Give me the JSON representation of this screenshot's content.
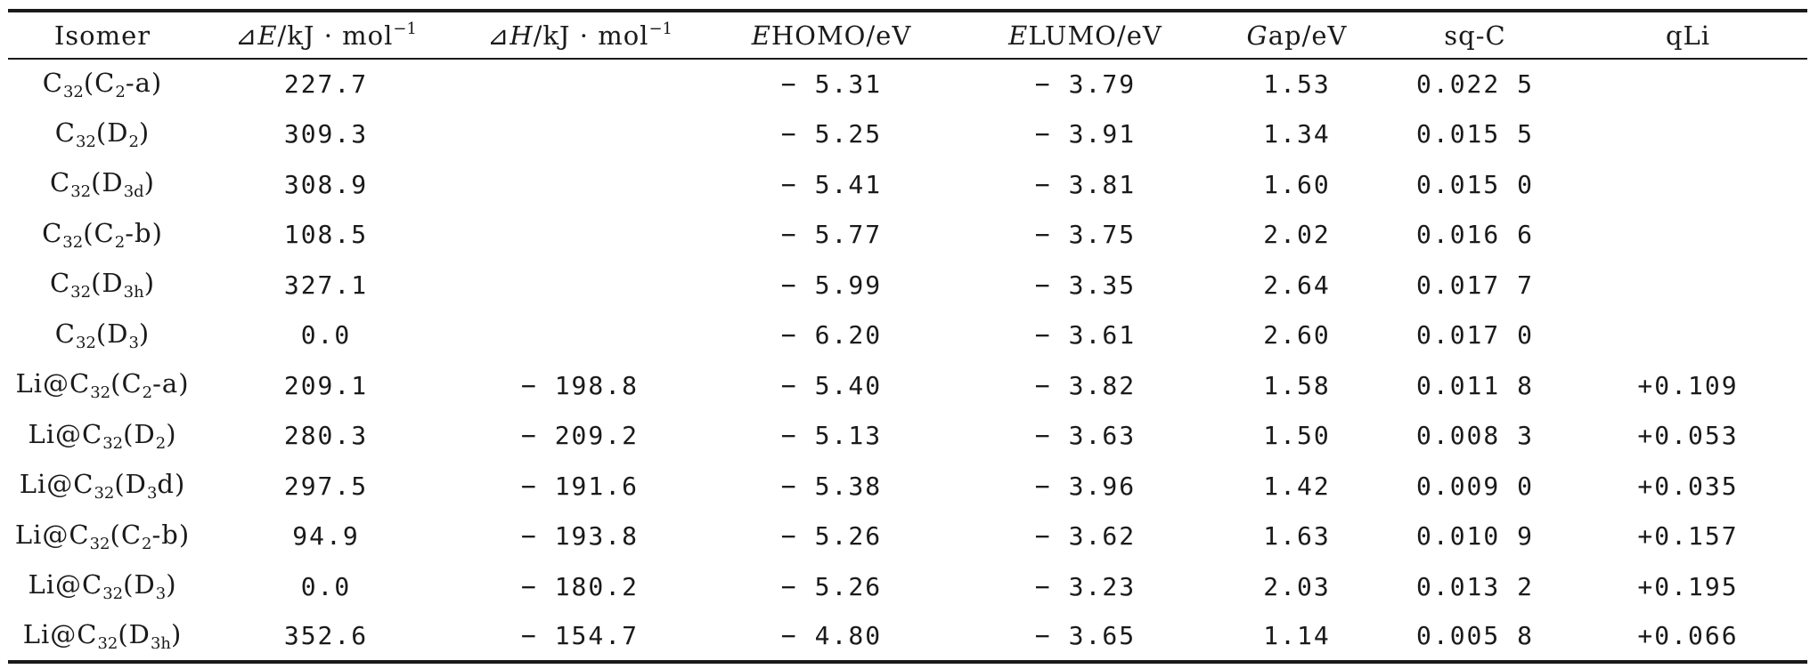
{
  "headers": {
    "isomer": "Isomer",
    "dE_sym": "⊿",
    "dE_var": "E",
    "dE_unit": "/kJ · mol",
    "dE_exp": "−1",
    "dH_sym": "⊿",
    "dH_var": "H",
    "dH_unit": "/kJ · mol",
    "dH_exp": "−1",
    "homo_var": "E",
    "homo_unit": "HOMO/eV",
    "lumo_var": "E",
    "lumo_unit": "LUMO/eV",
    "gap_var": "G",
    "gap_unit": "ap/eV",
    "sqc": "sq-C",
    "qli": "qLi"
  },
  "rows": [
    {
      "prefix": "",
      "base": "C",
      "base_sub": "32",
      "sym_open": "(",
      "sym": "C",
      "sym_sub": "2",
      "sym_tail": "-a",
      "sym_close": ")",
      "dE": "227.7",
      "dH": "",
      "homo": "− 5.31",
      "lumo": "− 3.79",
      "gap": "1.53",
      "sqc": "0.022 5",
      "qli": ""
    },
    {
      "prefix": "",
      "base": "C",
      "base_sub": "32",
      "sym_open": "(",
      "sym": "D",
      "sym_sub": "2",
      "sym_tail": "",
      "sym_close": ")",
      "dE": "309.3",
      "dH": "",
      "homo": "− 5.25",
      "lumo": "− 3.91",
      "gap": "1.34",
      "sqc": "0.015 5",
      "qli": ""
    },
    {
      "prefix": "",
      "base": "C",
      "base_sub": "32",
      "sym_open": "(",
      "sym": "D",
      "sym_sub": "3d",
      "sym_tail": "",
      "sym_close": ")",
      "dE": "308.9",
      "dH": "",
      "homo": "− 5.41",
      "lumo": "− 3.81",
      "gap": "1.60",
      "sqc": "0.015 0",
      "qli": ""
    },
    {
      "prefix": "",
      "base": "C",
      "base_sub": "32",
      "sym_open": "(",
      "sym": "C",
      "sym_sub": "2",
      "sym_tail": "-b",
      "sym_close": ")",
      "dE": "108.5",
      "dH": "",
      "homo": "− 5.77",
      "lumo": "− 3.75",
      "gap": "2.02",
      "sqc": "0.016 6",
      "qli": ""
    },
    {
      "prefix": "",
      "base": "C",
      "base_sub": "32",
      "sym_open": "(",
      "sym": "D",
      "sym_sub": "3h",
      "sym_tail": "",
      "sym_close": ")",
      "dE": "327.1",
      "dH": "",
      "homo": "− 5.99",
      "lumo": "− 3.35",
      "gap": "2.64",
      "sqc": "0.017 7",
      "qli": ""
    },
    {
      "prefix": "",
      "base": "C",
      "base_sub": "32",
      "sym_open": "(",
      "sym": "D",
      "sym_sub": "3",
      "sym_tail": "",
      "sym_close": ")",
      "dE": "0.0",
      "dH": "",
      "homo": "− 6.20",
      "lumo": "− 3.61",
      "gap": "2.60",
      "sqc": "0.017 0",
      "qli": ""
    },
    {
      "prefix": "Li@",
      "base": "C",
      "base_sub": "32",
      "sym_open": "(",
      "sym": "C",
      "sym_sub": "2",
      "sym_tail": "-a",
      "sym_close": ")",
      "dE": "209.1",
      "dH": "− 198.8",
      "homo": "− 5.40",
      "lumo": "− 3.82",
      "gap": "1.58",
      "sqc": "0.011 8",
      "qli": "+0.109"
    },
    {
      "prefix": "Li@",
      "base": "C",
      "base_sub": "32",
      "sym_open": "(",
      "sym": "D",
      "sym_sub": "2",
      "sym_tail": "",
      "sym_close": ")",
      "dE": "280.3",
      "dH": "− 209.2",
      "homo": "− 5.13",
      "lumo": "− 3.63",
      "gap": "1.50",
      "sqc": "0.008 3",
      "qli": "+0.053"
    },
    {
      "prefix": "Li@",
      "base": "C",
      "base_sub": "32",
      "sym_open": "(",
      "sym": "D",
      "sym_sub": "3",
      "sym_tail": "d",
      "sym_close": ")",
      "dE": "297.5",
      "dH": "− 191.6",
      "homo": "− 5.38",
      "lumo": "− 3.96",
      "gap": "1.42",
      "sqc": "0.009 0",
      "qli": "+0.035"
    },
    {
      "prefix": "Li@",
      "base": "C",
      "base_sub": "32",
      "sym_open": "(",
      "sym": "C",
      "sym_sub": "2",
      "sym_tail": "-b",
      "sym_close": ")",
      "dE": "94.9",
      "dH": "− 193.8",
      "homo": "− 5.26",
      "lumo": "− 3.62",
      "gap": "1.63",
      "sqc": "0.010 9",
      "qli": "+0.157"
    },
    {
      "prefix": "Li@",
      "base": "C",
      "base_sub": "32",
      "sym_open": "(",
      "sym": "D",
      "sym_sub": "3",
      "sym_tail": "",
      "sym_close": ")",
      "dE": "0.0",
      "dH": "− 180.2",
      "homo": "− 5.26",
      "lumo": "− 3.23",
      "gap": "2.03",
      "sqc": "0.013 2",
      "qli": "+0.195"
    },
    {
      "prefix": "Li@",
      "base": "C",
      "base_sub": "32",
      "sym_open": "(",
      "sym": "D",
      "sym_sub": "3h",
      "sym_tail": "",
      "sym_close": ")",
      "dE": "352.6",
      "dH": "− 154.7",
      "homo": "− 4.80",
      "lumo": "− 3.65",
      "gap": "1.14",
      "sqc": "0.005 8",
      "qli": "+0.066"
    }
  ]
}
